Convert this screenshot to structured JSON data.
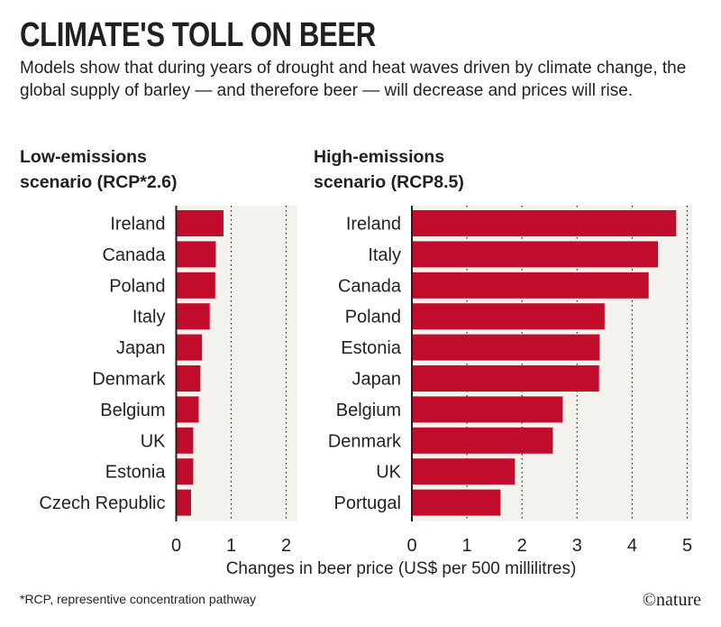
{
  "title": "CLIMATE'S TOLL ON BEER",
  "subtitle": "Models show that during years of drought and heat waves driven by climate change, the global supply of barley — and therefore beer — will decrease and prices will rise.",
  "footnote": "*RCP, representive concentration pathway",
  "logo": "©nature",
  "colors": {
    "bar": "#c20c2b",
    "plot_bg": "#f4f2ec"
  },
  "chart_data": [
    {
      "type": "bar",
      "orientation": "horizontal",
      "title": "Low-emissions scenario (RCP*2.6)",
      "title_lines": [
        "Low-emissions",
        "scenario (RCP*2.6)"
      ],
      "categories": [
        "Ireland",
        "Canada",
        "Poland",
        "Italy",
        "Japan",
        "Denmark",
        "Belgium",
        "UK",
        "Estonia",
        "Czech Republic"
      ],
      "values": [
        0.86,
        0.72,
        0.71,
        0.61,
        0.47,
        0.44,
        0.41,
        0.31,
        0.31,
        0.27
      ],
      "xlim": [
        0,
        2
      ],
      "xticks": [
        "0",
        "1",
        "2"
      ],
      "grid": "dotted"
    },
    {
      "type": "bar",
      "orientation": "horizontal",
      "title": "High-emissions scenario (RCP8.5)",
      "title_lines": [
        "High-emissions",
        "scenario (RCP8.5)"
      ],
      "categories": [
        "Ireland",
        "Italy",
        "Canada",
        "Poland",
        "Estonia",
        "Japan",
        "Belgium",
        "Denmark",
        "UK",
        "Portugal"
      ],
      "values": [
        4.8,
        4.47,
        4.3,
        3.5,
        3.41,
        3.4,
        2.74,
        2.56,
        1.87,
        1.61
      ],
      "xlim": [
        0,
        5
      ],
      "xticks": [
        "0",
        "1",
        "2",
        "3",
        "4",
        "5"
      ],
      "grid": "dotted"
    }
  ],
  "xlabel": "Changes in beer price (US$ per 500 millilitres)"
}
